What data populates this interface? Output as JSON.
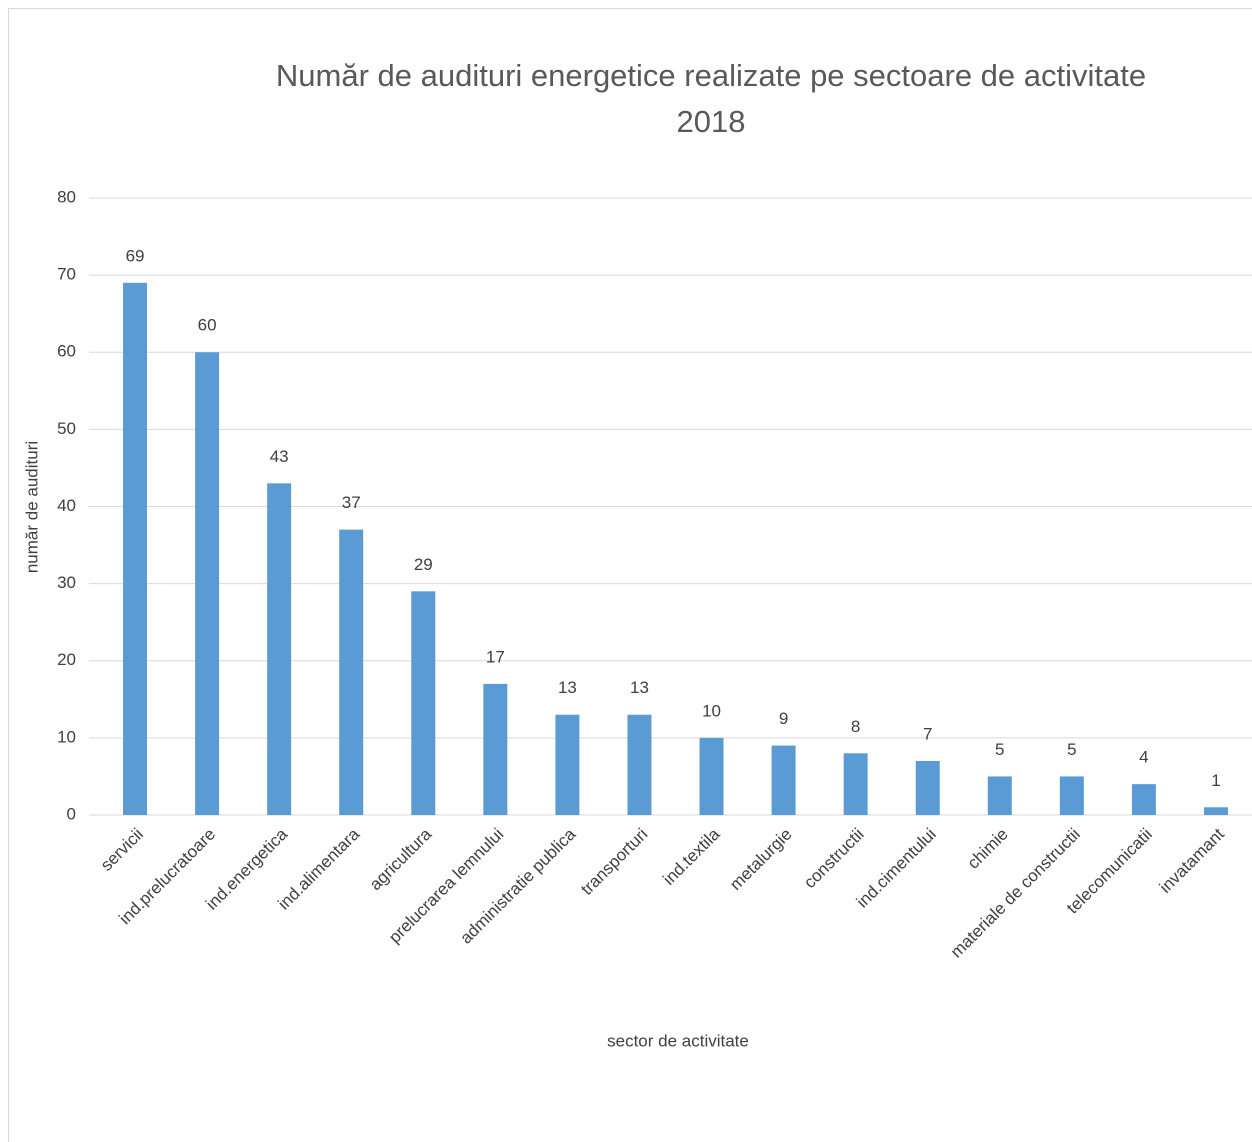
{
  "chart_data": {
    "type": "bar",
    "title": "Număr de audituri energetice realizate pe sectoare de activitate\n2018",
    "x_label": "sector de activitate",
    "y_label": "număr de audituri",
    "categories": [
      "servicii",
      "ind.prelucratoare",
      "ind.energetica",
      "ind.alimentara",
      "agricultura",
      "prelucrarea lemnului",
      "administratie publica",
      "transporturi",
      "ind.textila",
      "metalurgie",
      "constructii",
      "ind.cimentului",
      "chimie",
      "materiale de constructii",
      "telecomunicatii",
      "invatamant"
    ],
    "values": [
      69,
      60,
      43,
      37,
      29,
      17,
      13,
      13,
      10,
      9,
      8,
      7,
      5,
      5,
      4,
      1
    ],
    "color": "#5b9bd5",
    "ylim": [
      0,
      80
    ],
    "yticks": [
      0,
      10,
      20,
      30,
      40,
      50,
      60,
      70,
      80
    ],
    "grid": true
  }
}
